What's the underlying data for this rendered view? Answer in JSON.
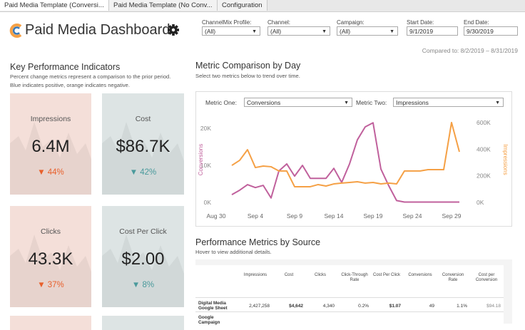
{
  "tabs": [
    "Paid Media Template (Conversi...",
    "Paid Media Template (No Conv...",
    "Configuration"
  ],
  "header": {
    "title": "Paid Media Dashboard"
  },
  "filters": [
    {
      "label": "ChannelMix Profile:",
      "value": "(All)"
    },
    {
      "label": "Channel:",
      "value": "(All)"
    },
    {
      "label": "Campaign:",
      "value": "(All)"
    },
    {
      "label": "Start Date:",
      "value": "9/1/2019"
    },
    {
      "label": "End Date:",
      "value": "9/30/2019"
    }
  ],
  "compared_to": "Compared to: 8/2/2019 – 8/31/2019",
  "kpi": {
    "title": "Key Performance Indicators",
    "description": "Percent change metrics represent a comparison to the prior period. Blue indicates positive, orange indicates negative."
  },
  "kpi_cards": [
    {
      "name": "Impressions",
      "value": "6.4M",
      "change": "▼ 44%",
      "color": "#e8602c",
      "background": "#f4dfd9"
    },
    {
      "name": "Cost",
      "value": "$86.7K",
      "change": "▼ 42%",
      "color": "#4a9a9c",
      "background": "#dde4e4"
    },
    {
      "name": "Clicks",
      "value": "43.3K",
      "change": "▼ 37%",
      "color": "#e8602c",
      "background": "#f4dfd9"
    },
    {
      "name": "Cost Per Click",
      "value": "$2.00",
      "change": "▼ 8%",
      "color": "#4a9a9c",
      "background": "#dde4e4"
    }
  ],
  "metric_comparison": {
    "title": "Metric Comparison by Day",
    "subtitle": "Select two metrics below to trend over time.",
    "metric_one_label": "Metric One:",
    "metric_one": "Conversions",
    "metric_two_label": "Metric Two:",
    "metric_two": "Impressions"
  },
  "chart_data": {
    "type": "line",
    "categories": [
      "Aug 30",
      null,
      null,
      null,
      null,
      "Sep 4",
      null,
      null,
      null,
      null,
      "Sep 9",
      null,
      null,
      null,
      null,
      "Sep 14",
      null,
      null,
      null,
      null,
      "Sep 19",
      null,
      null,
      null,
      null,
      "Sep 24",
      null,
      null,
      null,
      null,
      "Sep 29",
      null
    ],
    "series": [
      {
        "name": "Conversions",
        "color": "#c0609c",
        "values": [
          null,
          null,
          2100,
          3300,
          4800,
          4000,
          4600,
          1200,
          8500,
          10400,
          7100,
          10000,
          6500,
          6500,
          6500,
          9200,
          5400,
          10400,
          16900,
          20400,
          21500,
          9000,
          4500,
          500,
          100,
          100,
          100,
          100,
          100,
          100,
          100,
          100
        ]
      },
      {
        "name": "Impressions",
        "color": "#f5a045",
        "axis": "y2",
        "values": [
          null,
          null,
          278000,
          316000,
          396000,
          262000,
          273000,
          268000,
          236000,
          236000,
          118000,
          118000,
          118000,
          134000,
          123000,
          139000,
          145000,
          150000,
          155000,
          145000,
          150000,
          139000,
          145000,
          139000,
          236000,
          236000,
          236000,
          246000,
          246000,
          246000,
          600000,
          380000
        ]
      }
    ],
    "ylim": [
      0,
      22900
    ],
    "yticks": [
      {
        "value": 0,
        "label": "0K"
      },
      {
        "value": 10000,
        "label": "10K"
      },
      {
        "value": 20000,
        "label": "20K"
      }
    ],
    "y2lim": [
      0,
      637000
    ],
    "y2ticks": [
      {
        "value": 0,
        "label": "0K"
      },
      {
        "value": 200000,
        "label": "200K"
      },
      {
        "value": 400000,
        "label": "400K"
      },
      {
        "value": 600000,
        "label": "600K"
      }
    ],
    "ylabel": "Conversions",
    "y2label": "Impressions",
    "grid": false
  },
  "performance": {
    "title": "Performance Metrics by Source",
    "subtitle": "Hover to view additional details.",
    "columns": [
      "Impressions",
      "Cost",
      "Clicks",
      "Click-Through Rate",
      "Cost Per Click",
      "Conversions",
      "Conversion Rate",
      "Cost per Conversion"
    ],
    "rows": [
      {
        "source": "Digital Media Google Sheet",
        "cells": [
          "2,427,258",
          "$4,642",
          "4,340",
          "0.2%",
          "$1.07",
          "49",
          "1.1%",
          "$94.18"
        ]
      },
      {
        "source": "Google Campaign",
        "cells": []
      }
    ]
  }
}
